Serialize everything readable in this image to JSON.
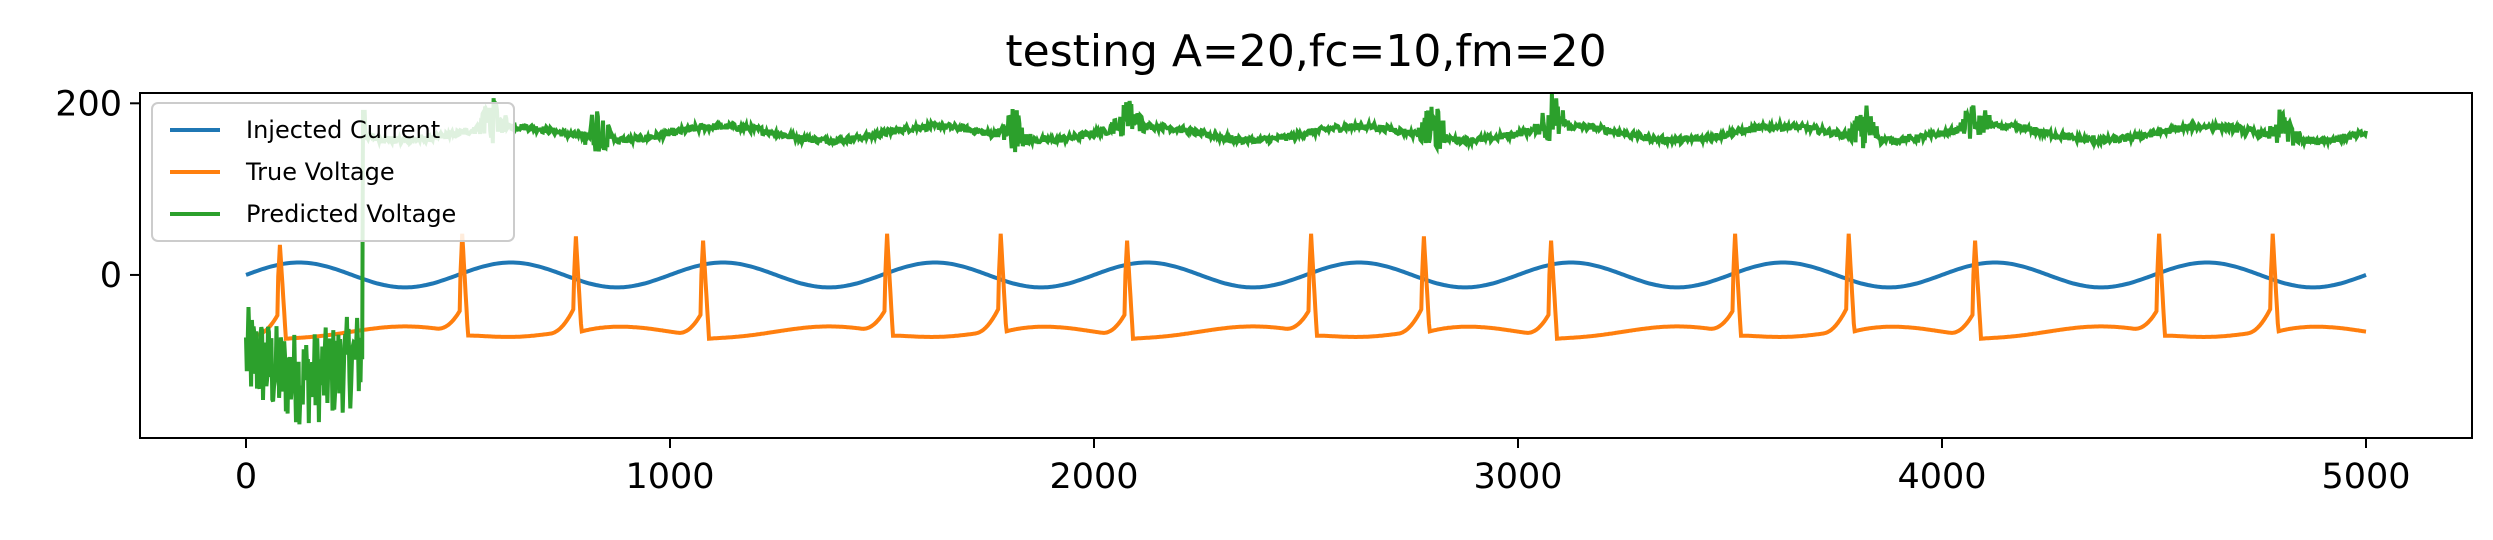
{
  "chart_data": {
    "type": "line",
    "title": "testing A=20,fc=10,fm=20",
    "xlabel": "",
    "ylabel": "",
    "xlim": [
      -250,
      5250
    ],
    "ylim": [
      -190,
      212
    ],
    "x_ticks": [
      0,
      1000,
      2000,
      3000,
      4000,
      5000
    ],
    "x_tick_labels": [
      "0",
      "1000",
      "2000",
      "3000",
      "4000",
      "5000"
    ],
    "y_ticks": [
      0,
      200
    ],
    "y_tick_labels": [
      "0",
      "200"
    ],
    "grid": false,
    "legend_position": "upper-left",
    "series": [
      {
        "name": "Injected Current",
        "color": "#1f77b4",
        "kind": "sine",
        "amplitude": 14.5,
        "period": 500,
        "x_start": 0,
        "x_end": 5000
      },
      {
        "name": "True Voltage",
        "color": "#ff7f0e",
        "kind": "spiking",
        "x_start": 0,
        "x_end": 5000,
        "spikes": [
          {
            "x": 80,
            "peak": 35
          },
          {
            "x": 510,
            "peak": 48
          },
          {
            "x": 778,
            "peak": 45
          },
          {
            "x": 1078,
            "peak": 40
          },
          {
            "x": 1512,
            "peak": 48
          },
          {
            "x": 1780,
            "peak": 48
          },
          {
            "x": 2078,
            "peak": 40
          },
          {
            "x": 2512,
            "peak": 48
          },
          {
            "x": 2778,
            "peak": 45
          },
          {
            "x": 3078,
            "peak": 40
          },
          {
            "x": 3512,
            "peak": 48
          },
          {
            "x": 3780,
            "peak": 48
          },
          {
            "x": 4078,
            "peak": 40
          },
          {
            "x": 4512,
            "peak": 48
          },
          {
            "x": 4780,
            "peak": 48
          }
        ]
      },
      {
        "name": "Predicted Voltage",
        "color": "#2ca02c",
        "kind": "noisy",
        "x_start": 0,
        "x_end": 5000,
        "transient_end": 280,
        "baseline_mean": 165,
        "burst_centers": [
          580,
          830,
          1810,
          2080,
          2800,
          3080,
          3820,
          4080,
          4810
        ]
      }
    ]
  }
}
